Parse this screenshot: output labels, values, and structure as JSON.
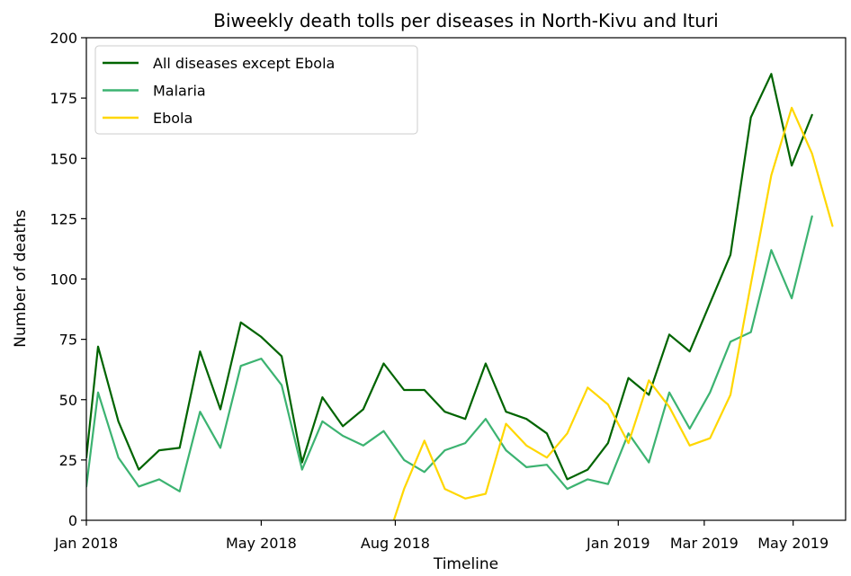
{
  "chart_data": {
    "type": "line",
    "title": "Biweekly death tolls per diseases in North-Kivu and Ituri",
    "xlabel": "Timeline",
    "ylabel": "Number of deaths",
    "ylim": [
      0,
      200
    ],
    "yticks": [
      0,
      25,
      50,
      75,
      100,
      125,
      150,
      175,
      200
    ],
    "xlim": [
      "2018-01-01",
      "2019-06-06"
    ],
    "xticks": [
      {
        "date": "2018-01-01",
        "label": "Jan 2018"
      },
      {
        "date": "2018-05-01",
        "label": "May 2018"
      },
      {
        "date": "2018-08-01",
        "label": "Aug 2018"
      },
      {
        "date": "2019-01-01",
        "label": "Jan 2019"
      },
      {
        "date": "2019-03-01",
        "label": "Mar 2019"
      },
      {
        "date": "2019-05-01",
        "label": "May 2019"
      }
    ],
    "grid": false,
    "legend_position": "top-left",
    "series": [
      {
        "name": "All diseases except Ebola",
        "color": "#006400",
        "points": [
          [
            "2018-01-01",
            26
          ],
          [
            "2018-01-09",
            72
          ],
          [
            "2018-01-23",
            41
          ],
          [
            "2018-02-06",
            21
          ],
          [
            "2018-02-20",
            29
          ],
          [
            "2018-03-06",
            30
          ],
          [
            "2018-03-20",
            70
          ],
          [
            "2018-04-03",
            46
          ],
          [
            "2018-04-17",
            82
          ],
          [
            "2018-05-01",
            76
          ],
          [
            "2018-05-15",
            68
          ],
          [
            "2018-05-29",
            24
          ],
          [
            "2018-06-12",
            51
          ],
          [
            "2018-06-26",
            39
          ],
          [
            "2018-07-10",
            46
          ],
          [
            "2018-07-24",
            65
          ],
          [
            "2018-08-07",
            54
          ],
          [
            "2018-08-21",
            54
          ],
          [
            "2018-09-04",
            45
          ],
          [
            "2018-09-18",
            42
          ],
          [
            "2018-10-02",
            65
          ],
          [
            "2018-10-16",
            45
          ],
          [
            "2018-10-30",
            42
          ],
          [
            "2018-11-13",
            36
          ],
          [
            "2018-11-27",
            17
          ],
          [
            "2018-12-11",
            21
          ],
          [
            "2018-12-25",
            32
          ],
          [
            "2019-01-08",
            59
          ],
          [
            "2019-01-22",
            52
          ],
          [
            "2019-02-05",
            77
          ],
          [
            "2019-02-19",
            70
          ],
          [
            "2019-03-05",
            90
          ],
          [
            "2019-03-19",
            110
          ],
          [
            "2019-04-02",
            167
          ],
          [
            "2019-04-16",
            185
          ],
          [
            "2019-04-30",
            147
          ],
          [
            "2019-05-14",
            168
          ]
        ]
      },
      {
        "name": "Malaria",
        "color": "#3cb371",
        "points": [
          [
            "2018-01-01",
            14
          ],
          [
            "2018-01-09",
            53
          ],
          [
            "2018-01-23",
            26
          ],
          [
            "2018-02-06",
            14
          ],
          [
            "2018-02-20",
            17
          ],
          [
            "2018-03-06",
            12
          ],
          [
            "2018-03-20",
            45
          ],
          [
            "2018-04-03",
            30
          ],
          [
            "2018-04-17",
            64
          ],
          [
            "2018-05-01",
            67
          ],
          [
            "2018-05-15",
            56
          ],
          [
            "2018-05-29",
            21
          ],
          [
            "2018-06-12",
            41
          ],
          [
            "2018-06-26",
            35
          ],
          [
            "2018-07-10",
            31
          ],
          [
            "2018-07-24",
            37
          ],
          [
            "2018-08-07",
            25
          ],
          [
            "2018-08-21",
            20
          ],
          [
            "2018-09-04",
            29
          ],
          [
            "2018-09-18",
            32
          ],
          [
            "2018-10-02",
            42
          ],
          [
            "2018-10-16",
            29
          ],
          [
            "2018-10-30",
            22
          ],
          [
            "2018-11-13",
            23
          ],
          [
            "2018-11-27",
            13
          ],
          [
            "2018-12-11",
            17
          ],
          [
            "2018-12-25",
            15
          ],
          [
            "2019-01-08",
            36
          ],
          [
            "2019-01-22",
            24
          ],
          [
            "2019-02-05",
            53
          ],
          [
            "2019-02-19",
            38
          ],
          [
            "2019-03-05",
            53
          ],
          [
            "2019-03-19",
            74
          ],
          [
            "2019-04-02",
            78
          ],
          [
            "2019-04-16",
            112
          ],
          [
            "2019-04-30",
            92
          ],
          [
            "2019-05-14",
            126
          ]
        ]
      },
      {
        "name": "Ebola",
        "color": "#ffd700",
        "points": [
          [
            "2018-07-31",
            0
          ],
          [
            "2018-08-07",
            13
          ],
          [
            "2018-08-21",
            33
          ],
          [
            "2018-09-04",
            13
          ],
          [
            "2018-09-18",
            9
          ],
          [
            "2018-10-02",
            11
          ],
          [
            "2018-10-16",
            40
          ],
          [
            "2018-10-30",
            31
          ],
          [
            "2018-11-13",
            26
          ],
          [
            "2018-11-27",
            36
          ],
          [
            "2018-12-11",
            55
          ],
          [
            "2018-12-25",
            48
          ],
          [
            "2019-01-08",
            32
          ],
          [
            "2019-01-22",
            58
          ],
          [
            "2019-02-05",
            47
          ],
          [
            "2019-02-19",
            31
          ],
          [
            "2019-03-05",
            34
          ],
          [
            "2019-03-19",
            52
          ],
          [
            "2019-04-02",
            98
          ],
          [
            "2019-04-16",
            143
          ],
          [
            "2019-04-30",
            171
          ],
          [
            "2019-05-14",
            152
          ],
          [
            "2019-05-28",
            122
          ]
        ]
      }
    ]
  }
}
